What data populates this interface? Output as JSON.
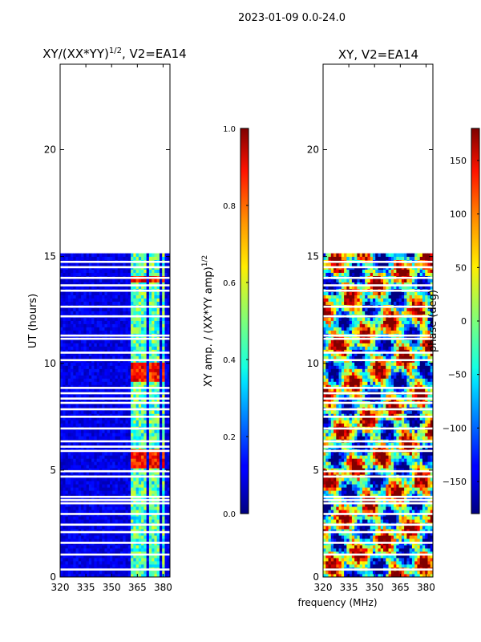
{
  "suptitle": "2023-01-09 0.0-24.0",
  "xlabel_shared": "frequency (MHz)",
  "chart_data": [
    {
      "type": "heatmap",
      "title_main": "XY/(XX*YY)",
      "title_exp": "1/2",
      "title_tail": ", V2=EA14",
      "xlabel": "frequency (MHz)",
      "ylabel": "UT (hours)",
      "xlim": [
        320,
        384
      ],
      "ylim": [
        0,
        24
      ],
      "xticks": [
        320,
        335,
        350,
        365,
        380
      ],
      "yticks": [
        0,
        5,
        10,
        15,
        20
      ],
      "data_extent_hours": [
        0,
        15.1
      ],
      "bright_channel_bands_mhz": [
        [
          361,
          364
        ],
        [
          364.5,
          367.5
        ],
        [
          368,
          370.5
        ],
        [
          371.5,
          374.5
        ],
        [
          375,
          378
        ],
        [
          379,
          381
        ]
      ],
      "colorbar": {
        "label_main": "XY amp. / (XX*YY amp)",
        "label_exp": "1/2",
        "range": [
          0.0,
          1.0
        ],
        "ticks": [
          "0.0",
          "0.2",
          "0.4",
          "0.6",
          "0.8",
          "1.0"
        ]
      },
      "gap_hours": [
        0.35,
        1.05,
        1.6,
        2.1,
        2.45,
        2.95,
        3.45,
        3.6,
        3.75,
        4.7,
        4.95,
        5.9,
        6.1,
        6.35,
        6.95,
        7.5,
        7.85,
        8.15,
        8.35,
        8.6,
        8.85,
        10.15,
        10.5,
        11.15,
        11.3,
        12.2,
        12.65,
        13.4,
        13.65,
        14.0,
        14.5,
        14.75
      ]
    },
    {
      "type": "heatmap",
      "title": "XY, V2=EA14",
      "xlabel": "frequency (MHz)",
      "ylabel": "",
      "xlim": [
        320,
        384
      ],
      "ylim": [
        0,
        24
      ],
      "xticks": [
        320,
        335,
        350,
        365,
        380
      ],
      "yticks": [
        0,
        5,
        10,
        15,
        20
      ],
      "data_extent_hours": [
        0,
        15.1
      ],
      "colorbar": {
        "label": "phase (deg)",
        "range": [
          -180,
          180
        ],
        "ticks": [
          "−150",
          "−100",
          "−50",
          "0",
          "50",
          "100",
          "150"
        ]
      },
      "gap_hours": [
        0.35,
        1.05,
        1.6,
        2.1,
        2.45,
        2.95,
        3.45,
        3.6,
        3.75,
        4.7,
        4.95,
        5.9,
        6.1,
        6.35,
        6.95,
        7.5,
        7.85,
        8.15,
        8.35,
        8.6,
        8.85,
        10.15,
        10.5,
        11.15,
        11.3,
        12.2,
        12.65,
        13.4,
        13.65,
        14.0,
        14.5,
        14.75
      ]
    }
  ]
}
